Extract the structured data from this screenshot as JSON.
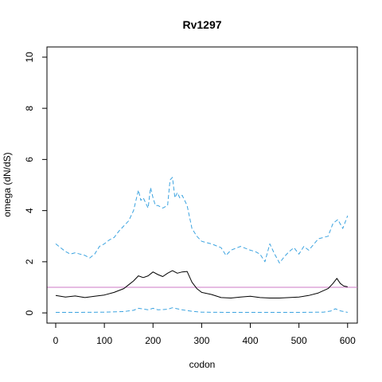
{
  "chart_data": {
    "type": "line",
    "title": "Rv1297",
    "xlabel": "codon",
    "ylabel": "omega (dN/dS)",
    "xlim": [
      -18,
      620
    ],
    "ylim": [
      -0.4,
      10.4
    ],
    "x_ticks": [
      0,
      100,
      200,
      300,
      400,
      500,
      600
    ],
    "y_ticks": [
      0,
      2,
      4,
      6,
      8,
      10
    ],
    "grid": false,
    "legend": "none",
    "reference_line": {
      "y": 1,
      "color": "#cc79c6"
    },
    "colors": {
      "estimate": "#000000",
      "interval": "#3ba3e0"
    },
    "series": [
      {
        "style": "solid",
        "color": "#000000",
        "x": [
          0,
          20,
          40,
          60,
          80,
          100,
          120,
          140,
          150,
          160,
          170,
          180,
          190,
          200,
          210,
          220,
          230,
          240,
          250,
          260,
          270,
          280,
          290,
          300,
          320,
          340,
          360,
          380,
          400,
          420,
          440,
          460,
          480,
          500,
          520,
          540,
          560,
          570,
          578,
          585,
          592,
          600
        ],
        "y": [
          0.68,
          0.62,
          0.66,
          0.6,
          0.65,
          0.7,
          0.8,
          0.95,
          1.1,
          1.25,
          1.45,
          1.38,
          1.45,
          1.6,
          1.5,
          1.42,
          1.55,
          1.65,
          1.55,
          1.6,
          1.62,
          1.2,
          0.95,
          0.8,
          0.72,
          0.6,
          0.58,
          0.62,
          0.65,
          0.6,
          0.58,
          0.58,
          0.6,
          0.62,
          0.68,
          0.78,
          0.95,
          1.15,
          1.35,
          1.15,
          1.05,
          1.02
        ]
      },
      {
        "style": "dashed",
        "color": "#3ba3e0",
        "x": [
          0,
          10,
          20,
          30,
          40,
          50,
          60,
          70,
          80,
          90,
          100,
          110,
          120,
          130,
          140,
          150,
          160,
          170,
          175,
          180,
          190,
          195,
          200,
          205,
          210,
          220,
          230,
          235,
          240,
          245,
          250,
          255,
          260,
          270,
          280,
          290,
          300,
          320,
          340,
          350,
          360,
          380,
          400,
          410,
          420,
          430,
          440,
          450,
          460,
          470,
          480,
          490,
          500,
          510,
          520,
          540,
          560,
          570,
          580,
          590,
          600
        ],
        "y": [
          2.7,
          2.55,
          2.4,
          2.3,
          2.35,
          2.3,
          2.25,
          2.15,
          2.3,
          2.6,
          2.7,
          2.85,
          2.95,
          3.2,
          3.4,
          3.6,
          4.0,
          4.8,
          4.4,
          4.5,
          4.1,
          4.9,
          4.5,
          4.2,
          4.2,
          4.1,
          4.2,
          5.2,
          5.3,
          4.5,
          4.7,
          4.5,
          4.6,
          4.2,
          3.3,
          3.0,
          2.8,
          2.7,
          2.55,
          2.25,
          2.45,
          2.6,
          2.45,
          2.4,
          2.3,
          2.0,
          2.7,
          2.3,
          1.95,
          2.2,
          2.4,
          2.55,
          2.3,
          2.6,
          2.45,
          2.9,
          3.0,
          3.5,
          3.65,
          3.3,
          3.8
        ]
      },
      {
        "style": "dashed",
        "color": "#3ba3e0",
        "x": [
          0,
          50,
          100,
          140,
          160,
          170,
          180,
          190,
          200,
          210,
          230,
          240,
          250,
          260,
          280,
          300,
          350,
          400,
          450,
          500,
          550,
          565,
          575,
          585,
          600
        ],
        "y": [
          0.02,
          0.02,
          0.03,
          0.05,
          0.1,
          0.18,
          0.15,
          0.12,
          0.18,
          0.12,
          0.14,
          0.2,
          0.16,
          0.12,
          0.06,
          0.03,
          0.02,
          0.02,
          0.02,
          0.02,
          0.03,
          0.07,
          0.16,
          0.08,
          0.02
        ]
      }
    ]
  }
}
